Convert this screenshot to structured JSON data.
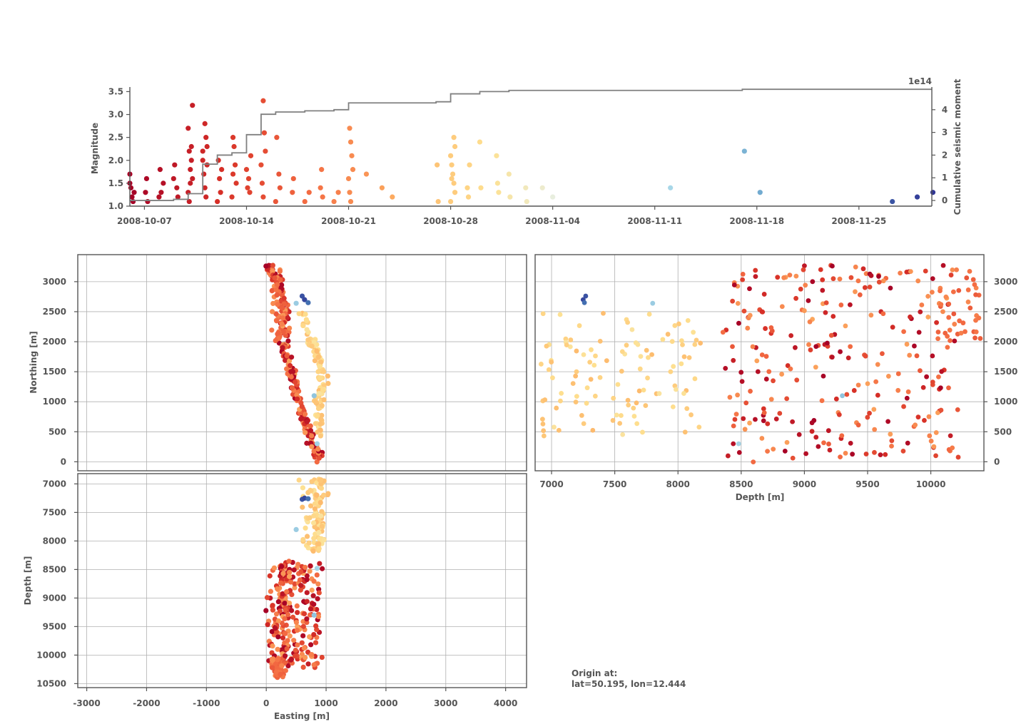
{
  "chart_data": [
    {
      "type": "scatter",
      "name": "magnitude-timeline",
      "title": "",
      "xlabel": "",
      "ylabel": "Magnitude",
      "y2label": "Cumulative seismic moment",
      "y2_exponent_label": "1e14",
      "x_range": [
        "2008-10-06",
        "2008-11-30"
      ],
      "ylim": [
        1.0,
        3.6
      ],
      "y2lim": [
        -0.25,
        5.0
      ],
      "x_tick_labels": [
        "2008-10-07",
        "2008-10-14",
        "2008-10-21",
        "2008-10-28",
        "2008-11-04",
        "2008-11-11",
        "2008-11-18",
        "2008-11-25"
      ],
      "y_tick_labels": [
        "1.0",
        "1.5",
        "2.0",
        "2.5",
        "3.0",
        "3.5"
      ],
      "y2_tick_labels": [
        "0",
        "1",
        "2",
        "3",
        "4"
      ],
      "series": [
        {
          "name": "events",
          "color_by": "time",
          "colormap": [
            "#a50026",
            "#d73027",
            "#f46d43",
            "#fdae61",
            "#fee090",
            "#e0f3f8",
            "#abd9e9",
            "#74add1",
            "#4575b4",
            "#313695"
          ],
          "points": [
            [
              "2008-10-06",
              1.7
            ],
            [
              "2008-10-06",
              1.4
            ],
            [
              "2008-10-06",
              1.2
            ],
            [
              "2008-10-06",
              1.1
            ],
            [
              "2008-10-06",
              1.3
            ],
            [
              "2008-10-06",
              1.5
            ],
            [
              "2008-10-07",
              1.3
            ],
            [
              "2008-10-07",
              1.6
            ],
            [
              "2008-10-07",
              1.1
            ],
            [
              "2008-10-08",
              1.5
            ],
            [
              "2008-10-08",
              1.2
            ],
            [
              "2008-10-08",
              1.8
            ],
            [
              "2008-10-08",
              1.3
            ],
            [
              "2008-10-09",
              1.4
            ],
            [
              "2008-10-09",
              1.2
            ],
            [
              "2008-10-09",
              1.6
            ],
            [
              "2008-10-09",
              1.9
            ],
            [
              "2008-10-10",
              1.5
            ],
            [
              "2008-10-10",
              2.3
            ],
            [
              "2008-10-10",
              3.2
            ],
            [
              "2008-10-10",
              2.7
            ],
            [
              "2008-10-10",
              2.2
            ],
            [
              "2008-10-10",
              1.8
            ],
            [
              "2008-10-10",
              2.0
            ],
            [
              "2008-10-10",
              1.6
            ],
            [
              "2008-10-10",
              1.3
            ],
            [
              "2008-10-10",
              1.1
            ],
            [
              "2008-10-11",
              2.8
            ],
            [
              "2008-10-11",
              2.5
            ],
            [
              "2008-10-11",
              2.3
            ],
            [
              "2008-10-11",
              2.0
            ],
            [
              "2008-10-11",
              1.7
            ],
            [
              "2008-10-11",
              1.4
            ],
            [
              "2008-10-11",
              1.2
            ],
            [
              "2008-10-11",
              1.9
            ],
            [
              "2008-10-11",
              2.2
            ],
            [
              "2008-10-12",
              2.0
            ],
            [
              "2008-10-12",
              1.6
            ],
            [
              "2008-10-12",
              1.3
            ],
            [
              "2008-10-12",
              1.8
            ],
            [
              "2008-10-12",
              1.1
            ],
            [
              "2008-10-13",
              2.5
            ],
            [
              "2008-10-13",
              2.3
            ],
            [
              "2008-10-13",
              1.9
            ],
            [
              "2008-10-13",
              1.5
            ],
            [
              "2008-10-13",
              1.2
            ],
            [
              "2008-10-13",
              1.7
            ],
            [
              "2008-10-14",
              1.6
            ],
            [
              "2008-10-14",
              1.3
            ],
            [
              "2008-10-14",
              2.1
            ],
            [
              "2008-10-14",
              1.8
            ],
            [
              "2008-10-14",
              1.4
            ],
            [
              "2008-10-15",
              3.3
            ],
            [
              "2008-10-15",
              2.6
            ],
            [
              "2008-10-15",
              2.2
            ],
            [
              "2008-10-15",
              1.9
            ],
            [
              "2008-10-15",
              1.5
            ],
            [
              "2008-10-15",
              1.2
            ],
            [
              "2008-10-16",
              1.7
            ],
            [
              "2008-10-16",
              1.4
            ],
            [
              "2008-10-16",
              1.1
            ],
            [
              "2008-10-16",
              2.5
            ],
            [
              "2008-10-17",
              1.3
            ],
            [
              "2008-10-17",
              1.6
            ],
            [
              "2008-10-18",
              1.3
            ],
            [
              "2008-10-18",
              1.1
            ],
            [
              "2008-10-19",
              1.4
            ],
            [
              "2008-10-19",
              1.8
            ],
            [
              "2008-10-19",
              1.2
            ],
            [
              "2008-10-20",
              1.3
            ],
            [
              "2008-10-20",
              1.1
            ],
            [
              "2008-10-21",
              2.7
            ],
            [
              "2008-10-21",
              2.4
            ],
            [
              "2008-10-21",
              2.1
            ],
            [
              "2008-10-21",
              1.8
            ],
            [
              "2008-10-21",
              1.6
            ],
            [
              "2008-10-21",
              1.3
            ],
            [
              "2008-10-21",
              1.1
            ],
            [
              "2008-10-22",
              1.7
            ],
            [
              "2008-10-23",
              1.4
            ],
            [
              "2008-10-24",
              1.2
            ],
            [
              "2008-10-27",
              1.9
            ],
            [
              "2008-10-27",
              1.1
            ],
            [
              "2008-10-28",
              2.5
            ],
            [
              "2008-10-28",
              2.3
            ],
            [
              "2008-10-28",
              2.1
            ],
            [
              "2008-10-28",
              1.9
            ],
            [
              "2008-10-28",
              1.7
            ],
            [
              "2008-10-28",
              1.5
            ],
            [
              "2008-10-28",
              1.3
            ],
            [
              "2008-10-28",
              1.1
            ],
            [
              "2008-10-28",
              1.6
            ],
            [
              "2008-10-29",
              1.4
            ],
            [
              "2008-10-29",
              1.2
            ],
            [
              "2008-10-29",
              1.9
            ],
            [
              "2008-10-30",
              2.4
            ],
            [
              "2008-10-30",
              1.4
            ],
            [
              "2008-10-31",
              2.1
            ],
            [
              "2008-10-31",
              1.5
            ],
            [
              "2008-10-31",
              1.3
            ],
            [
              "2008-11-01",
              1.7
            ],
            [
              "2008-11-01",
              1.2
            ],
            [
              "2008-11-02",
              1.4
            ],
            [
              "2008-11-02",
              1.1
            ],
            [
              "2008-11-03",
              1.4
            ],
            [
              "2008-11-04",
              1.2
            ],
            [
              "2008-11-12",
              1.4
            ],
            [
              "2008-11-17",
              2.2
            ],
            [
              "2008-11-18",
              1.3
            ],
            [
              "2008-11-27",
              1.1
            ],
            [
              "2008-11-29",
              1.2
            ],
            [
              "2008-11-30",
              1.3
            ]
          ]
        },
        {
          "name": "cumulative-moment",
          "color": "#808080",
          "steps": [
            [
              "2008-10-06",
              0.0
            ],
            [
              "2008-10-09",
              0.05
            ],
            [
              "2008-10-10",
              0.3
            ],
            [
              "2008-10-11",
              1.6
            ],
            [
              "2008-10-12",
              2.0
            ],
            [
              "2008-10-13",
              2.1
            ],
            [
              "2008-10-14",
              2.15
            ],
            [
              "2008-10-14",
              2.9
            ],
            [
              "2008-10-15",
              3.1
            ],
            [
              "2008-10-15",
              3.8
            ],
            [
              "2008-10-16",
              3.9
            ],
            [
              "2008-10-18",
              3.95
            ],
            [
              "2008-10-20",
              4.0
            ],
            [
              "2008-10-21",
              4.1
            ],
            [
              "2008-10-21",
              4.3
            ],
            [
              "2008-10-27",
              4.35
            ],
            [
              "2008-10-28",
              4.5
            ],
            [
              "2008-10-28",
              4.7
            ],
            [
              "2008-10-30",
              4.8
            ],
            [
              "2008-11-01",
              4.85
            ],
            [
              "2008-11-17",
              4.9
            ],
            [
              "2008-11-30",
              4.9
            ]
          ]
        }
      ]
    },
    {
      "type": "scatter",
      "name": "map-view",
      "xlabel": "",
      "ylabel": "Northing [m]",
      "xlim": [
        -3150,
        4350
      ],
      "ylim": [
        -150,
        3450
      ],
      "y_tick_labels": [
        "0",
        "500",
        "1000",
        "1500",
        "2000",
        "2500",
        "3000"
      ],
      "x_ticks": [
        -3000,
        -2000,
        -1000,
        0,
        1000,
        2000,
        3000,
        4000
      ],
      "clusters": [
        {
          "early": true,
          "path": [
            [
              0,
              3300
            ],
            [
              200,
              3000
            ],
            [
              300,
              2500
            ],
            [
              300,
              2000
            ],
            [
              400,
              1500
            ],
            [
              550,
              1000
            ],
            [
              700,
              500
            ],
            [
              900,
              0
            ]
          ],
          "spread": 120,
          "n": 260
        },
        {
          "early": false,
          "path": [
            [
              600,
              2500
            ],
            [
              750,
              2000
            ],
            [
              900,
              1700
            ],
            [
              950,
              1300
            ],
            [
              850,
              900
            ],
            [
              900,
              400
            ]
          ],
          "spread": 110,
          "n": 110
        }
      ]
    },
    {
      "type": "scatter",
      "name": "depth-northing-view",
      "xlabel": "Depth [m]",
      "ylabel": "",
      "xlim": [
        6870,
        10420
      ],
      "ylim": [
        -150,
        3450
      ],
      "x_tick_labels": [
        "7000",
        "7500",
        "8000",
        "8500",
        "9000",
        "9500",
        "10000"
      ],
      "y_tick_labels": [
        "0",
        "500",
        "1000",
        "1500",
        "2000",
        "2500",
        "3000"
      ]
    },
    {
      "type": "scatter",
      "name": "easting-depth-view",
      "xlabel": "Easting [m]",
      "ylabel": "Depth [m]",
      "xlim": [
        -3150,
        4350
      ],
      "ylim": [
        6820,
        10570
      ],
      "x_tick_labels": [
        "-3000",
        "-2000",
        "-1000",
        "0",
        "1000",
        "2000",
        "3000",
        "4000"
      ],
      "y_tick_labels": [
        "7000",
        "7500",
        "8000",
        "8500",
        "9000",
        "9500",
        "10000",
        "10500"
      ]
    }
  ],
  "origin_note": {
    "line1": "Origin at:",
    "line2": "lat=50.195, lon=12.444"
  }
}
